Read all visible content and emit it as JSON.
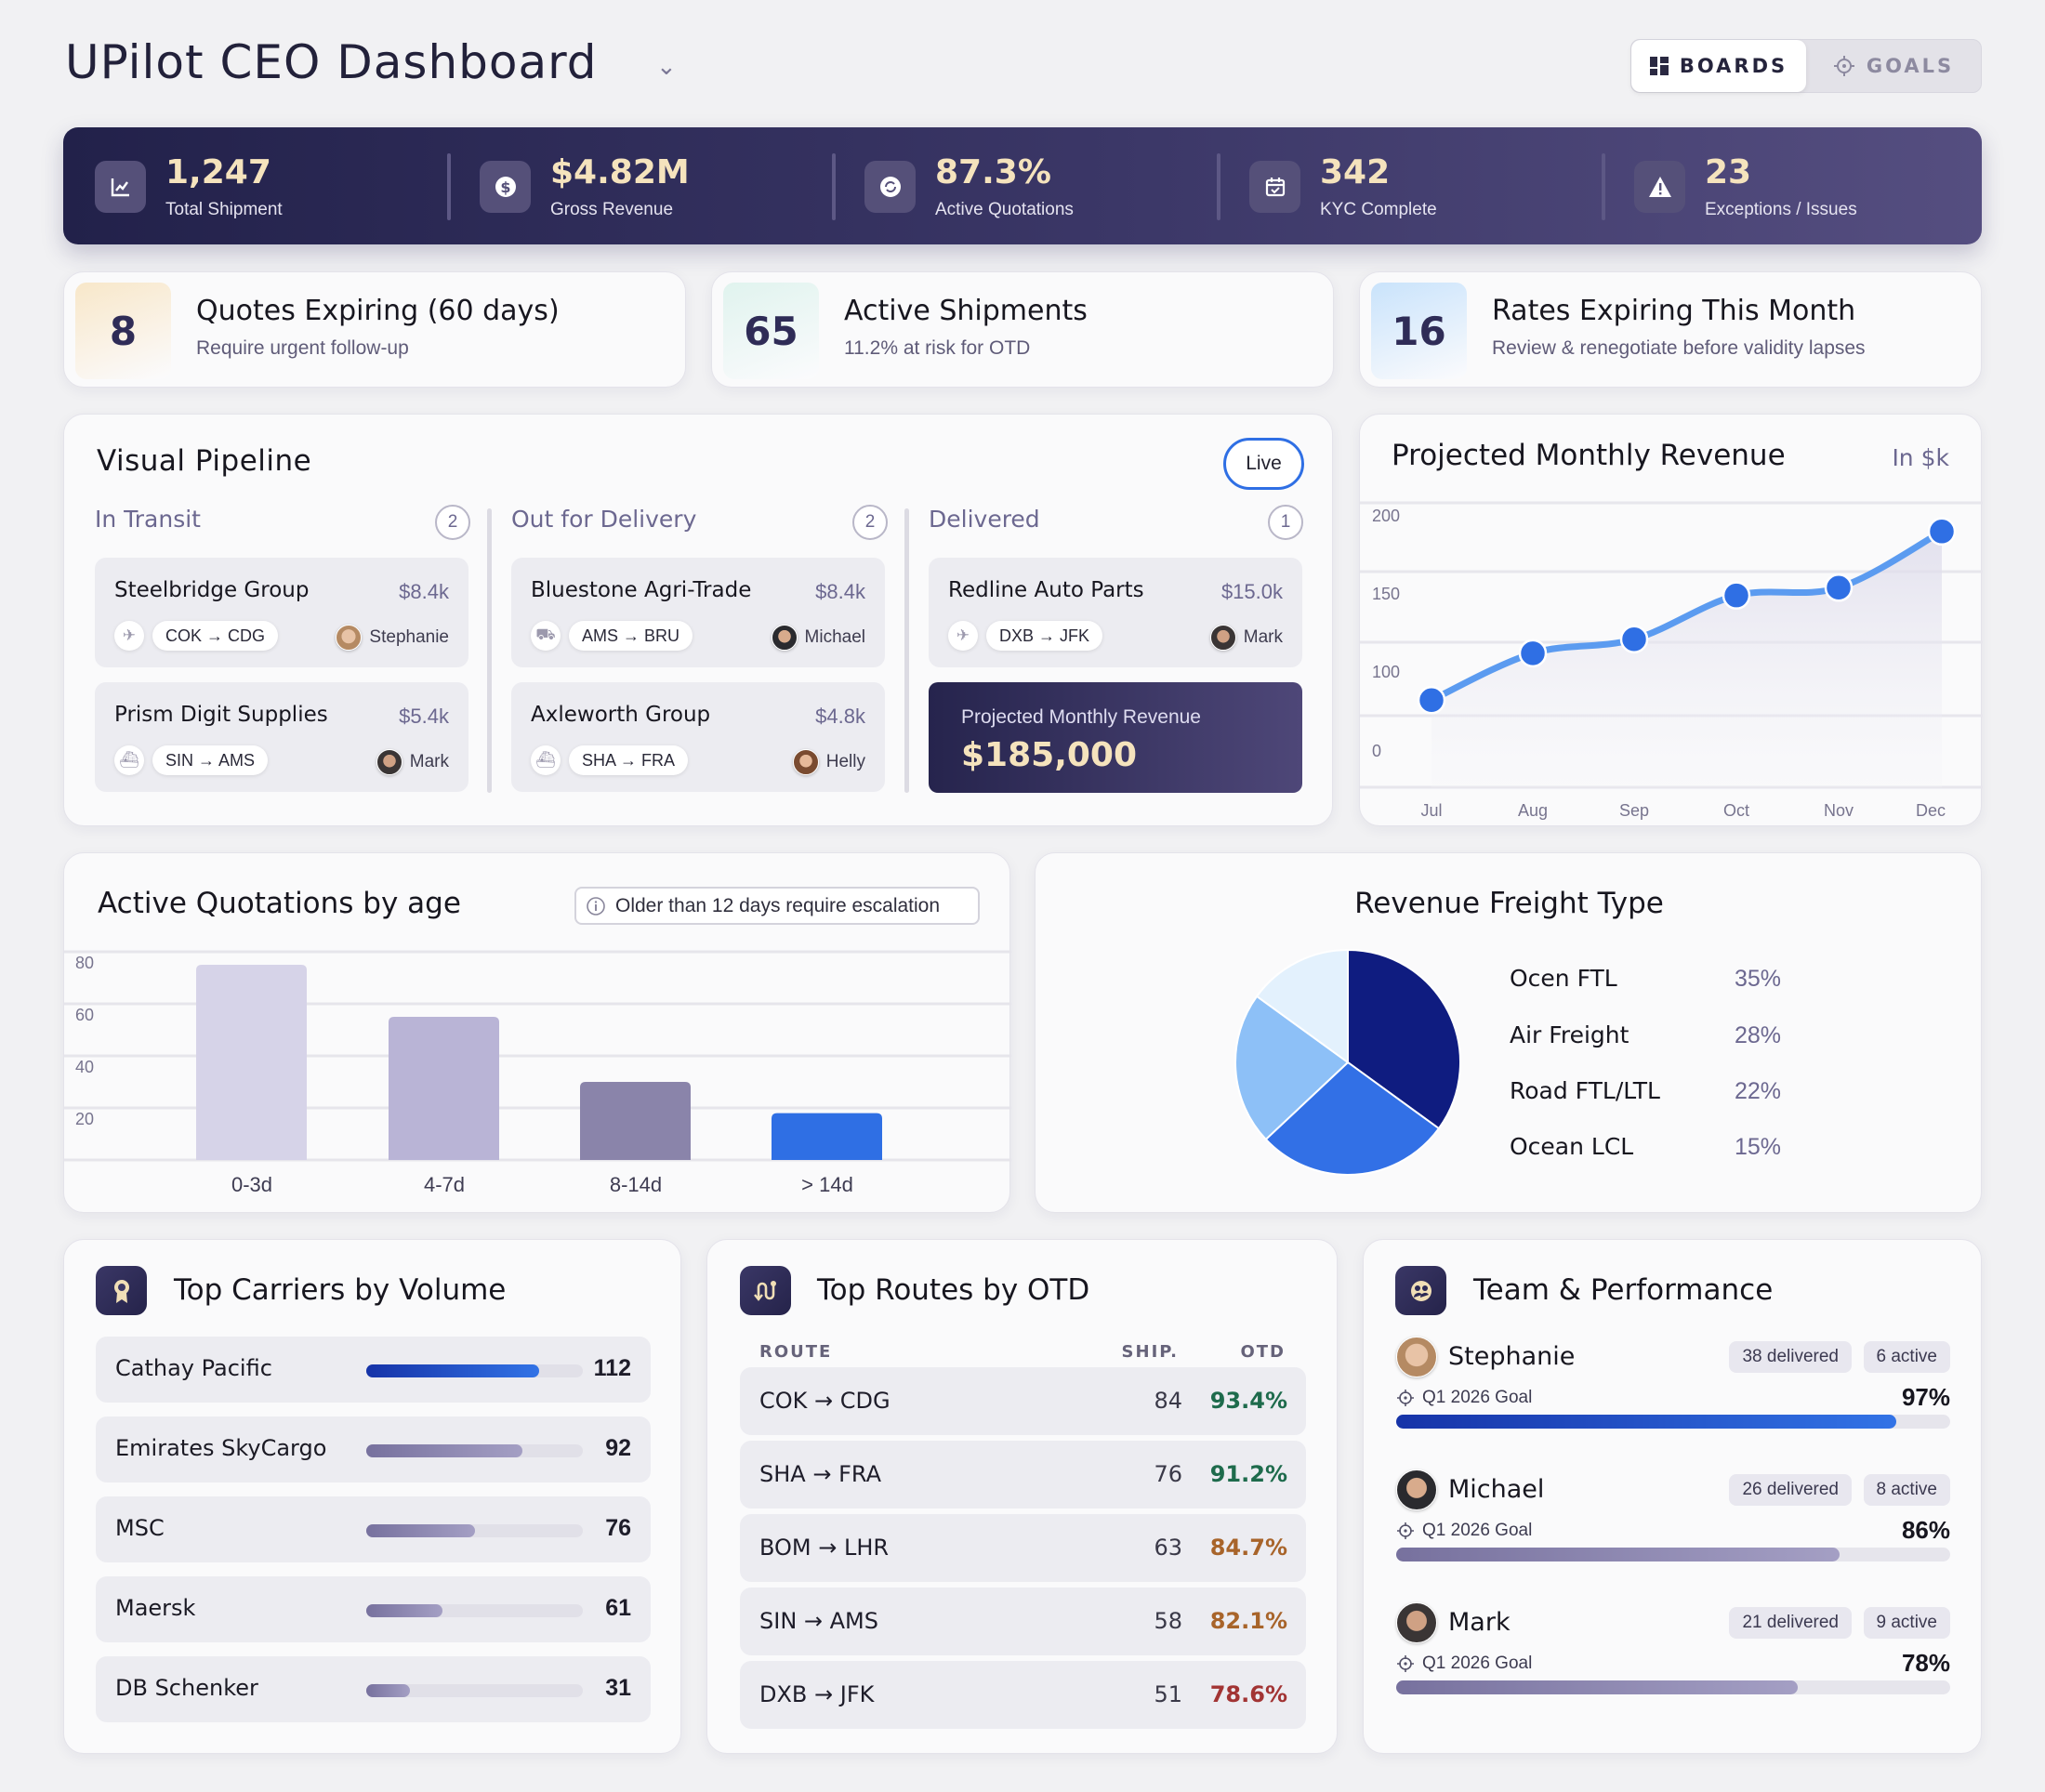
{
  "header": {
    "title": "UPilot CEO Dashboard",
    "toggle": {
      "boards": "BOARDS",
      "goals": "GOALS",
      "active": "BOARDS"
    }
  },
  "kpis": [
    {
      "value": "1,247",
      "label": "Total Shipment",
      "icon": "chart-icon"
    },
    {
      "value": "$4.82M",
      "label": "Gross Revenue",
      "icon": "dollar-icon"
    },
    {
      "value": "87.3%",
      "label": "Active Quotations",
      "icon": "refresh-icon"
    },
    {
      "value": "342",
      "label": "KYC Complete",
      "icon": "calendar-check-icon"
    },
    {
      "value": "23",
      "label": "Exceptions / Issues",
      "icon": "warning-icon"
    }
  ],
  "summary": [
    {
      "count": "8",
      "title": "Quotes Expiring (60 days)",
      "subtitle": "Require urgent follow-up",
      "accent": "#f8e7c9"
    },
    {
      "count": "65",
      "title": "Active Shipments",
      "subtitle": "11.2% at risk for OTD",
      "accent": "#e0f3ee"
    },
    {
      "count": "16",
      "title": "Rates Expiring This Month",
      "subtitle": "Review & renegotiate before validity lapses",
      "accent": "#c9e3fb"
    }
  ],
  "pipeline": {
    "title": "Visual Pipeline",
    "live": "Live",
    "columns": [
      {
        "name": "In Transit",
        "count": "2",
        "cards": [
          {
            "company": "Steelbridge Group",
            "amount": "$8.4k",
            "mode": "plane",
            "route": "COK → CDG",
            "owner": "Stephanie"
          },
          {
            "company": "Prism Digit Supplies",
            "amount": "$5.4k",
            "mode": "ship",
            "route": "SIN → AMS",
            "owner": "Mark"
          }
        ]
      },
      {
        "name": "Out for Delivery",
        "count": "2",
        "cards": [
          {
            "company": "Bluestone Agri-Trade",
            "amount": "$8.4k",
            "mode": "truck",
            "route": "AMS → BRU",
            "owner": "Michael"
          },
          {
            "company": "Axleworth Group",
            "amount": "$4.8k",
            "mode": "ship",
            "route": "SHA → FRA",
            "owner": "Helly"
          }
        ]
      },
      {
        "name": "Delivered",
        "count": "1",
        "cards": [
          {
            "company": "Redline Auto Parts",
            "amount": "$15.0k",
            "mode": "plane",
            "route": "DXB → JFK",
            "owner": "Mark"
          }
        ]
      }
    ],
    "projected": {
      "label": "Projected Monthly Revenue",
      "value": "$185,000"
    }
  },
  "chart_data": [
    {
      "type": "line",
      "title": "Projected Monthly Revenue",
      "unit_label": "In $k",
      "categories": [
        "Jul",
        "Aug",
        "Sep",
        "Oct",
        "Nov",
        "Dec"
      ],
      "values": [
        82,
        112,
        121,
        149,
        154,
        190
      ],
      "y_ticks": [
        "200",
        "150",
        "100",
        "0"
      ],
      "grid": true,
      "color": "#2f6fe4"
    },
    {
      "type": "bar",
      "title": "Active Quotations by age",
      "note": "Older than 12 days require escalation",
      "categories": [
        "0-3d",
        "4-7d",
        "8-14d",
        "> 14d"
      ],
      "values": [
        75,
        55,
        30,
        18
      ],
      "y_ticks": [
        "80",
        "60",
        "40",
        "20"
      ],
      "ylim": [
        0,
        80
      ],
      "grid": true,
      "colors": [
        "#d6d3e8",
        "#b9b4d6",
        "#8a84aa",
        "#2f6fe4"
      ]
    },
    {
      "type": "pie",
      "title": "Revenue Freight Type",
      "labels": [
        "Ocen FTL",
        "Air Freight",
        "Road FTL/LTL",
        "Ocean LCL"
      ],
      "values": [
        35,
        28,
        22,
        15
      ],
      "value_labels": [
        "35%",
        "28%",
        "22%",
        "15%"
      ],
      "colors": [
        "#0f1c80",
        "#3270e6",
        "#8dc0f7",
        "#e3f1fd"
      ],
      "legend": "right"
    }
  ],
  "carriers": {
    "title": "Top Carriers by Volume",
    "icon": "award-icon",
    "items": [
      {
        "name": "Cathay Pacific",
        "value": "112",
        "fill": 0.8
      },
      {
        "name": "Emirates SkyCargo",
        "value": "92",
        "fill": 0.72
      },
      {
        "name": "MSC",
        "value": "76",
        "fill": 0.5
      },
      {
        "name": "Maersk",
        "value": "61",
        "fill": 0.35
      },
      {
        "name": "DB Schenker",
        "value": "31",
        "fill": 0.2
      }
    ]
  },
  "routes": {
    "title": "Top Routes by OTD",
    "icon": "route-icon",
    "headers": {
      "route": "ROUTE",
      "ship": "SHIP.",
      "otd": "OTD"
    },
    "items": [
      {
        "route": "COK → CDG",
        "ship": "84",
        "otd": "93.4%",
        "color": "#1e6b4c"
      },
      {
        "route": "SHA → FRA",
        "ship": "76",
        "otd": "91.2%",
        "color": "#1e6b4c"
      },
      {
        "route": "BOM → LHR",
        "ship": "63",
        "otd": "84.7%",
        "color": "#a8642a"
      },
      {
        "route": "SIN → AMS",
        "ship": "58",
        "otd": "82.1%",
        "color": "#a8642a"
      },
      {
        "route": "DXB → JFK",
        "ship": "51",
        "otd": "78.6%",
        "color": "#a23434"
      }
    ]
  },
  "team": {
    "title": "Team & Performance",
    "icon": "team-icon",
    "members": [
      {
        "name": "Stephanie",
        "delivered": "38 delivered",
        "active": "6 active",
        "goal_label": "Q1 2026 Goal",
        "goal": "97%",
        "progress": 97
      },
      {
        "name": "Michael",
        "delivered": "26 delivered",
        "active": "8 active",
        "goal_label": "Q1 2026 Goal",
        "goal": "86%",
        "progress": 86
      },
      {
        "name": "Mark",
        "delivered": "21 delivered",
        "active": "9 active",
        "goal_label": "Q1 2026 Goal",
        "goal": "78%",
        "progress": 78
      }
    ]
  }
}
